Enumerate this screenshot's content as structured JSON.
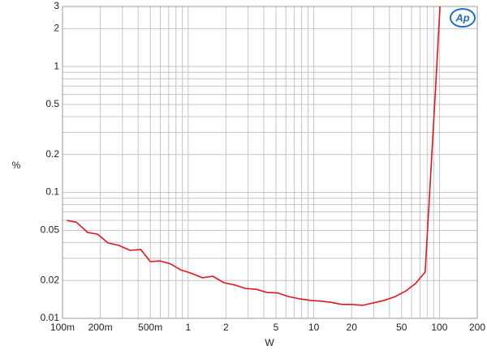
{
  "logo": "Ap",
  "chart_data": {
    "type": "line",
    "x_label": "W",
    "y_label": "%",
    "log_x": true,
    "log_y": true,
    "grid": true,
    "xlim": [
      0.1,
      200
    ],
    "ylim": [
      0.01,
      3
    ],
    "xticks": [
      {
        "value": 0.1,
        "label": "100m"
      },
      {
        "value": 0.2,
        "label": "200m"
      },
      {
        "value": 0.5,
        "label": "500m"
      },
      1,
      2,
      5,
      10,
      20,
      50,
      100,
      200
    ],
    "yticks": [
      0.01,
      0.02,
      0.05,
      0.1,
      0.2,
      0.5,
      1,
      2,
      3
    ],
    "xminor": [
      0.3,
      0.4,
      0.6,
      0.7,
      0.8,
      0.9,
      3,
      4,
      6,
      7,
      8,
      9,
      30,
      40,
      60,
      70,
      80,
      90
    ],
    "yminor": [
      0.03,
      0.04,
      0.06,
      0.07,
      0.08,
      0.09,
      0.3,
      0.4,
      0.6,
      0.7,
      0.8,
      0.9
    ],
    "series": [
      {
        "color": "#e3141c",
        "x": [
          0.108,
          0.129,
          0.159,
          0.19,
          0.23,
          0.28,
          0.345,
          0.42,
          0.5,
          0.6,
          0.73,
          0.87,
          1.05,
          1.3,
          1.57,
          1.93,
          2.35,
          2.85,
          3.5,
          4.2,
          5.2,
          6.3,
          7.7,
          9.4,
          11.5,
          13.7,
          16.7,
          20.1,
          24.5,
          30,
          36.5,
          44.5,
          54,
          64.5,
          77,
          92.7,
          101
        ],
        "values": [
          0.06,
          0.058,
          0.048,
          0.0467,
          0.0397,
          0.038,
          0.0347,
          0.0352,
          0.0282,
          0.0286,
          0.027,
          0.0243,
          0.0229,
          0.021,
          0.0216,
          0.0192,
          0.0184,
          0.0173,
          0.017,
          0.0161,
          0.0159,
          0.0149,
          0.0143,
          0.0139,
          0.0137,
          0.0134,
          0.0129,
          0.0129,
          0.0127,
          0.0133,
          0.0139,
          0.0149,
          0.0165,
          0.0189,
          0.0233,
          0.615,
          3
        ]
      }
    ]
  }
}
